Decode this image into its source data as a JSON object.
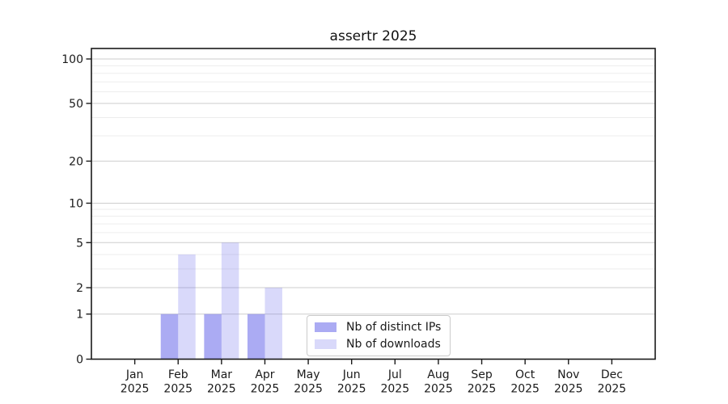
{
  "chart_data": {
    "type": "bar",
    "title": "assertr 2025",
    "categories": [
      {
        "month": "Jan",
        "year": "2025"
      },
      {
        "month": "Feb",
        "year": "2025"
      },
      {
        "month": "Mar",
        "year": "2025"
      },
      {
        "month": "Apr",
        "year": "2025"
      },
      {
        "month": "May",
        "year": "2025"
      },
      {
        "month": "Jun",
        "year": "2025"
      },
      {
        "month": "Jul",
        "year": "2025"
      },
      {
        "month": "Aug",
        "year": "2025"
      },
      {
        "month": "Sep",
        "year": "2025"
      },
      {
        "month": "Oct",
        "year": "2025"
      },
      {
        "month": "Nov",
        "year": "2025"
      },
      {
        "month": "Dec",
        "year": "2025"
      }
    ],
    "series": [
      {
        "name": "Nb of distinct IPs",
        "color": "rgba(110,110,235,0.58)",
        "values": [
          0,
          1,
          1,
          1,
          0,
          0,
          0,
          0,
          0,
          0,
          0,
          0
        ]
      },
      {
        "name": "Nb of downloads",
        "color": "rgba(110,110,235,0.26)",
        "values": [
          0,
          4,
          5,
          2,
          0,
          0,
          0,
          0,
          0,
          0,
          0,
          0
        ]
      }
    ],
    "y_axis": {
      "scale": "log1p",
      "ticks": [
        0,
        1,
        2,
        5,
        10,
        20,
        50,
        100
      ],
      "minor_gridlines": [
        3,
        4,
        6,
        7,
        8,
        9,
        30,
        40,
        60,
        70,
        80,
        90
      ],
      "range": [
        0,
        117
      ]
    },
    "xlabel": "",
    "ylabel": "",
    "grid": "horizontal",
    "legend_position": "lower center-right inside plot",
    "colors": {
      "axis": "#1a1a1a",
      "major_grid": "#cdcdcd",
      "minor_grid": "#ededed"
    }
  }
}
